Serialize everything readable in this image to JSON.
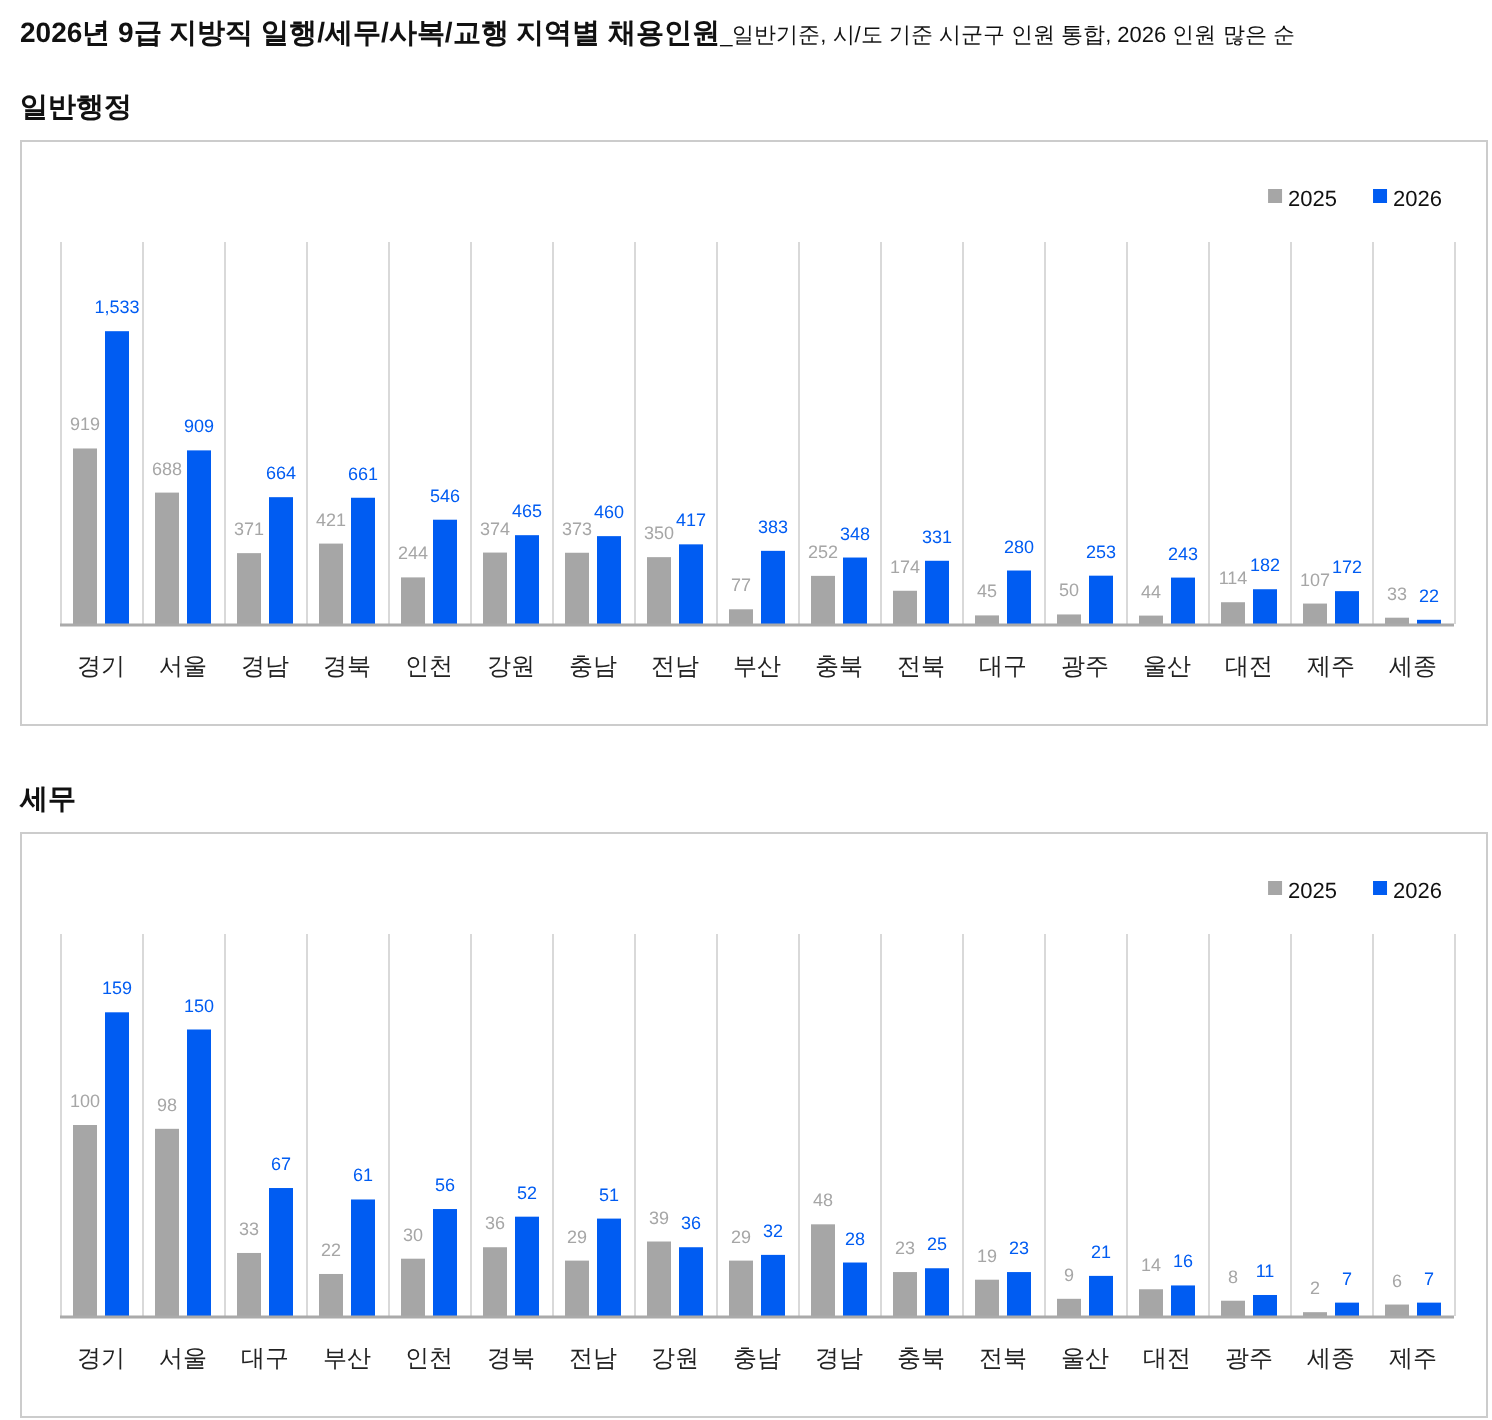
{
  "chart_data": [
    {
      "type": "bar",
      "title": "**2026년 9급 지방직 일행/세무/사복/교행 지역별 채용인원**_일반기준, 시/도 기준 시군구 인원 통합, 2026 인원 많은 순",
      "subtitle": "일반행정",
      "categories": [
        "경기",
        "서울",
        "경남",
        "경북",
        "인천",
        "강원",
        "충남",
        "전남",
        "부산",
        "충북",
        "전북",
        "대구",
        "광주",
        "울산",
        "대전",
        "제주",
        "세종"
      ],
      "series": [
        {
          "name": "2025",
          "color": "#a6a6a6",
          "values": [
            919,
            688,
            371,
            421,
            244,
            374,
            373,
            350,
            77,
            252,
            174,
            45,
            50,
            44,
            114,
            107,
            33
          ],
          "value_labels": [
            "919",
            "688",
            "371",
            "421",
            "244",
            "374",
            "373",
            "350",
            "77",
            "252",
            "174",
            "45",
            "50",
            "44",
            "114",
            "107",
            "33"
          ]
        },
        {
          "name": "2026",
          "color": "#005cf2",
          "values": [
            1533,
            909,
            664,
            661,
            546,
            465,
            460,
            417,
            383,
            348,
            331,
            280,
            253,
            243,
            182,
            172,
            22
          ],
          "value_labels": [
            "1,533",
            "909",
            "664",
            "661",
            "546",
            "465",
            "460",
            "417",
            "383",
            "348",
            "331",
            "280",
            "253",
            "243",
            "182",
            "172",
            "22"
          ]
        }
      ],
      "tick_labels": "x",
      "grid": "x",
      "legend": "top right"
    },
    {
      "type": "bar",
      "title": "세무",
      "categories": [
        "경기",
        "서울",
        "대구",
        "부산",
        "인천",
        "경북",
        "전남",
        "강원",
        "충남",
        "경남",
        "충북",
        "전북",
        "울산",
        "대전",
        "광주",
        "세종",
        "제주"
      ],
      "series": [
        {
          "name": "2025",
          "color": "#a6a6a6",
          "values": [
            100,
            98,
            33,
            22,
            30,
            36,
            29,
            39,
            29,
            48,
            23,
            19,
            9,
            14,
            8,
            2,
            6
          ],
          "value_labels": [
            "100",
            "98",
            "33",
            "22",
            "30",
            "36",
            "29",
            "39",
            "29",
            "48",
            "23",
            "19",
            "9",
            "14",
            "8",
            "2",
            "6"
          ]
        },
        {
          "name": "2026",
          "color": "#005cf2",
          "values": [
            159,
            150,
            67,
            61,
            56,
            52,
            51,
            36,
            32,
            28,
            25,
            23,
            21,
            16,
            11,
            7,
            7
          ],
          "value_labels": [
            "159",
            "150",
            "67",
            "61",
            "56",
            "52",
            "51",
            "36",
            "32",
            "28",
            "25",
            "23",
            "21",
            "16",
            "11",
            "7",
            "7"
          ]
        }
      ],
      "tick_labels": "x",
      "grid": "x",
      "legend": "top right"
    }
  ]
}
